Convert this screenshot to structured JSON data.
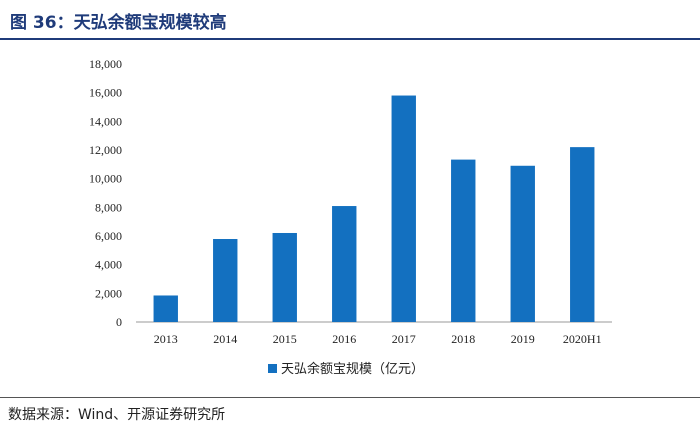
{
  "header": {
    "title": "图 36：天弘余额宝规模较高"
  },
  "footer": {
    "source": "数据来源：Wind、开源证券研究所"
  },
  "chart_data": {
    "type": "bar",
    "categories": [
      "2013",
      "2014",
      "2015",
      "2016",
      "2017",
      "2018",
      "2019",
      "2020H1"
    ],
    "series": [
      {
        "name": "天弘余额宝规模（亿元）",
        "values": [
          1850,
          5790,
          6210,
          8090,
          15800,
          11330,
          10900,
          12200
        ]
      }
    ],
    "ylim": [
      0,
      18000
    ],
    "yticks": [
      "0",
      "2,000",
      "4,000",
      "6,000",
      "8,000",
      "10,000",
      "12,000",
      "14,000",
      "16,000",
      "18,000"
    ],
    "ytick_values": [
      0,
      2000,
      4000,
      6000,
      8000,
      10000,
      12000,
      14000,
      16000,
      18000
    ],
    "grid": false,
    "legend_position": "bottom-center",
    "colors": {
      "bar": "#1370c0",
      "title": "#1f3b7a"
    }
  }
}
